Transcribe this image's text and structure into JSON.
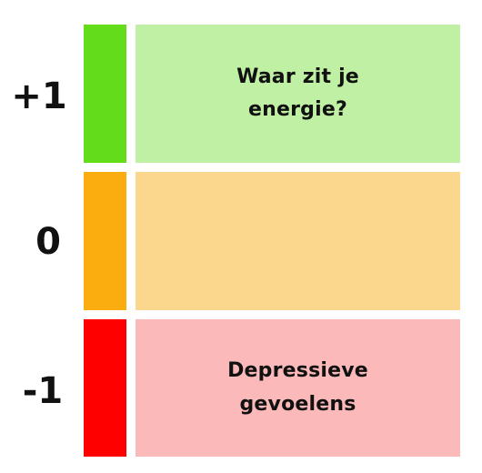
{
  "rows": [
    {
      "label": "+1",
      "bar_color": "#63dd1a",
      "panel_color": "#bff0a3",
      "text_lines": [
        "Waar zit je",
        "energie?"
      ]
    },
    {
      "label": "0",
      "bar_color": "#fbac0e",
      "panel_color": "#fbd78e",
      "text_lines": []
    },
    {
      "label": "-1",
      "bar_color": "#ff0000",
      "panel_color": "#fbbab9",
      "text_lines": [
        "Depressieve",
        "gevoelens"
      ]
    }
  ]
}
